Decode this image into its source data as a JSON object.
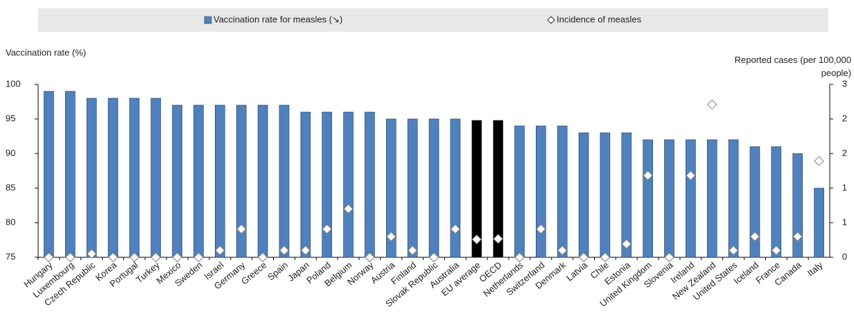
{
  "chart_data": {
    "type": "bar",
    "y_label": "Vaccination rate (%)",
    "y2_label": "Reported cases (per 100,000 people)",
    "categories": [
      "Hungary",
      "Luxembourg",
      "Czech Republic",
      "Korea",
      "Portugal",
      "Turkey",
      "Mexico",
      "Sweden",
      "Israel",
      "Germany",
      "Greece",
      "Spain",
      "Japan",
      "Poland",
      "Belgium",
      "Norway",
      "Austria",
      "Finland",
      "Slovak Republic",
      "Australia",
      "EU average",
      "OECD",
      "Netherlands",
      "Switzerland",
      "Denmark",
      "Latvia",
      "Chile",
      "Estonia",
      "United Kingdom",
      "Slovenia",
      "Ireland",
      "New Zealand",
      "United States",
      "Iceland",
      "France",
      "Canada",
      "Italy"
    ],
    "highlight_categories": [
      "EU average",
      "OECD"
    ],
    "highlight_color": "#000000",
    "series": [
      {
        "name": "Vaccination rate for measles (↘)",
        "type": "bar",
        "color": "#4f81bd",
        "values": [
          99,
          99,
          98,
          98,
          98,
          98,
          97,
          97,
          97,
          97,
          97,
          97,
          96,
          96,
          96,
          96,
          95,
          95,
          95,
          95,
          94.8,
          94.8,
          94,
          94,
          94,
          93,
          93,
          93,
          92,
          92,
          92,
          92,
          92,
          91,
          91,
          90,
          85
        ]
      },
      {
        "name": "Incidence of measles",
        "type": "diamond",
        "axis": "y2",
        "color": "#7f7f7f",
        "values": [
          0,
          0,
          0.06,
          0,
          0,
          0,
          0,
          0,
          0.12,
          0.49,
          0,
          0.12,
          0.12,
          0.49,
          0.84,
          0,
          0.36,
          0.12,
          0,
          0.49,
          0.31,
          0.32,
          0,
          0.49,
          0.12,
          0,
          0,
          0.23,
          1.42,
          0,
          1.42,
          2.65,
          0.12,
          0.36,
          0.12,
          0.36,
          1.67
        ]
      }
    ],
    "ylim": [
      75,
      100
    ],
    "yticks": [
      75,
      80,
      85,
      90,
      95,
      100
    ],
    "y2lim": [
      0,
      3
    ],
    "y2ticks": [
      0,
      {
        "value": 0.6,
        "label": "1"
      },
      {
        "value": 1.2,
        "label": "1"
      },
      {
        "value": 1.8,
        "label": "2"
      },
      {
        "value": 2.4,
        "label": "2"
      },
      3
    ],
    "grid": false
  }
}
